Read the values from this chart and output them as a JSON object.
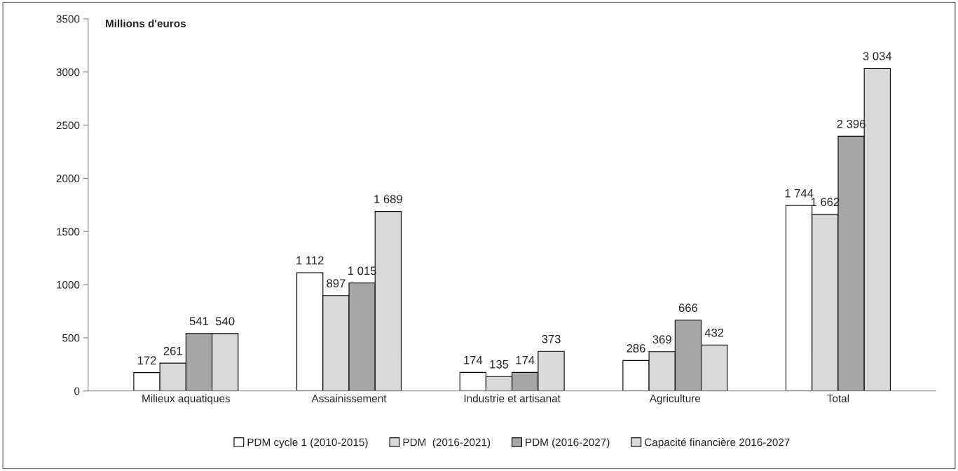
{
  "chart_data": {
    "type": "bar",
    "ylabel": "Millions d'euros",
    "categories": [
      "Milieux aquatiques",
      "Assainissement",
      "Industrie et artisanat",
      "Agriculture",
      "Total"
    ],
    "series": [
      {
        "name": "PDM cycle 1 (2010-2015)",
        "color": "#ffffff",
        "values": [
          172,
          1112,
          174,
          286,
          1744
        ],
        "value_labels": [
          "172",
          "1 112",
          "174",
          "286",
          "1 744"
        ]
      },
      {
        "name": "PDM  (2016-2021)",
        "color": "#d9d9d9",
        "values": [
          261,
          897,
          135,
          369,
          1662
        ],
        "value_labels": [
          "261",
          "897",
          "135",
          "369",
          "1 662"
        ]
      },
      {
        "name": "PDM (2016-2027)",
        "color": "#a6a6a6",
        "values": [
          541,
          1015,
          174,
          666,
          2396
        ],
        "value_labels": [
          "541",
          "1 015",
          "174",
          "666",
          "2 396"
        ]
      },
      {
        "name": "Capacité financière 2016-2027",
        "color": "#d9d9d9",
        "values": [
          540,
          1689,
          373,
          432,
          3034
        ],
        "value_labels": [
          "540",
          "1 689",
          "373",
          "432",
          "3 034"
        ]
      }
    ],
    "ylim": [
      0,
      3500
    ],
    "yticks": [
      0,
      500,
      1000,
      1500,
      2000,
      2500,
      3000,
      3500
    ],
    "grid": false,
    "legend": "bottom"
  }
}
